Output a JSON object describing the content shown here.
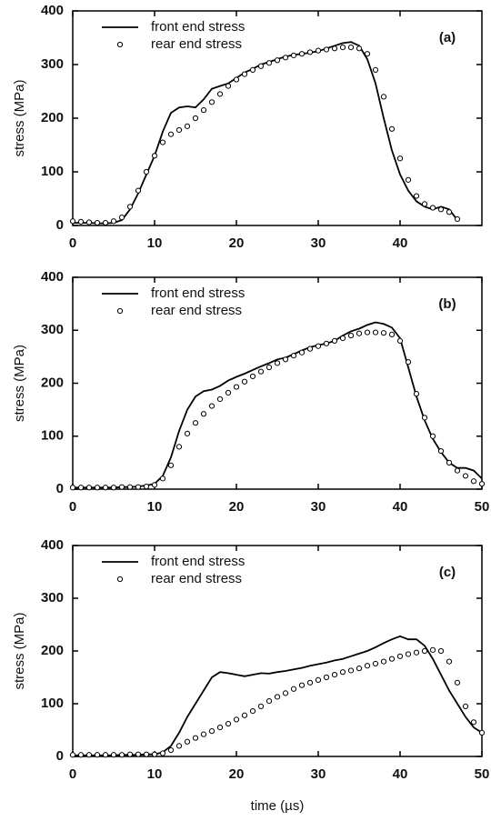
{
  "chart_data": [
    {
      "type": "line",
      "annotation": "(a)",
      "ylabel": "stress (MPa)",
      "x": [
        0,
        1,
        2,
        3,
        4,
        5,
        6,
        7,
        8,
        9,
        10,
        11,
        12,
        13,
        14,
        15,
        16,
        17,
        18,
        19,
        20,
        21,
        22,
        23,
        24,
        25,
        26,
        27,
        28,
        29,
        30,
        31,
        32,
        33,
        34,
        35,
        36,
        37,
        38,
        39,
        40,
        41,
        42,
        43,
        44,
        45,
        46,
        47
      ],
      "series": [
        {
          "name": "front end stress",
          "color": "#000000",
          "style": "line",
          "values": [
            5,
            5,
            5,
            4,
            4,
            5,
            10,
            30,
            60,
            95,
            130,
            175,
            210,
            220,
            222,
            220,
            235,
            255,
            260,
            265,
            275,
            285,
            292,
            300,
            305,
            310,
            315,
            318,
            320,
            322,
            325,
            330,
            335,
            340,
            342,
            335,
            310,
            265,
            200,
            140,
            95,
            65,
            45,
            35,
            30,
            35,
            30,
            10
          ]
        },
        {
          "name": "rear end stress",
          "color": "#000000",
          "style": "circle",
          "values": [
            8,
            7,
            6,
            5,
            5,
            8,
            15,
            35,
            65,
            100,
            130,
            155,
            170,
            178,
            185,
            200,
            215,
            230,
            245,
            260,
            272,
            282,
            290,
            297,
            303,
            308,
            313,
            317,
            320,
            323,
            326,
            328,
            330,
            332,
            332,
            330,
            320,
            290,
            240,
            180,
            125,
            85,
            55,
            40,
            33,
            30,
            25,
            12
          ]
        }
      ],
      "xlim": [
        0,
        50
      ],
      "xticks": [
        0,
        10,
        20,
        30,
        40
      ],
      "ylim": [
        0,
        400
      ],
      "yticks": [
        0,
        100,
        200,
        300,
        400
      ],
      "legend": "upper left"
    },
    {
      "type": "line",
      "annotation": "(b)",
      "ylabel": "stress (MPa)",
      "x": [
        0,
        1,
        2,
        3,
        4,
        5,
        6,
        7,
        8,
        9,
        10,
        11,
        12,
        13,
        14,
        15,
        16,
        17,
        18,
        19,
        20,
        21,
        22,
        23,
        24,
        25,
        26,
        27,
        28,
        29,
        30,
        31,
        32,
        33,
        34,
        35,
        36,
        37,
        38,
        39,
        40,
        41,
        42,
        43,
        44,
        45,
        46,
        47,
        48,
        49,
        50
      ],
      "series": [
        {
          "name": "front end stress",
          "color": "#000000",
          "style": "line",
          "values": [
            3,
            3,
            3,
            3,
            3,
            3,
            4,
            4,
            5,
            7,
            10,
            25,
            60,
            110,
            150,
            175,
            185,
            188,
            195,
            205,
            212,
            218,
            225,
            232,
            238,
            245,
            248,
            255,
            262,
            268,
            272,
            275,
            280,
            290,
            298,
            303,
            310,
            315,
            312,
            305,
            285,
            230,
            175,
            130,
            95,
            70,
            50,
            40,
            40,
            35,
            20
          ]
        },
        {
          "name": "rear end stress",
          "color": "#000000",
          "style": "circle",
          "values": [
            3,
            3,
            3,
            3,
            3,
            3,
            4,
            4,
            4,
            5,
            8,
            20,
            45,
            80,
            105,
            125,
            142,
            157,
            170,
            182,
            193,
            203,
            213,
            222,
            230,
            238,
            245,
            252,
            258,
            265,
            270,
            275,
            280,
            285,
            290,
            294,
            296,
            296,
            295,
            292,
            280,
            240,
            180,
            135,
            100,
            72,
            50,
            35,
            25,
            15,
            10
          ]
        }
      ],
      "xlim": [
        0,
        50
      ],
      "xticks": [
        0,
        10,
        20,
        30,
        40,
        50
      ],
      "ylim": [
        0,
        400
      ],
      "yticks": [
        0,
        100,
        200,
        300,
        400
      ],
      "legend": "upper left"
    },
    {
      "type": "line",
      "annotation": "(c)",
      "ylabel": "stress (MPa)",
      "xlabel": "time (µs)",
      "x": [
        0,
        1,
        2,
        3,
        4,
        5,
        6,
        7,
        8,
        9,
        10,
        11,
        12,
        13,
        14,
        15,
        16,
        17,
        18,
        19,
        20,
        21,
        22,
        23,
        24,
        25,
        26,
        27,
        28,
        29,
        30,
        31,
        32,
        33,
        34,
        35,
        36,
        37,
        38,
        39,
        40,
        41,
        42,
        43,
        44,
        45,
        46,
        47,
        48,
        49,
        50
      ],
      "series": [
        {
          "name": "front end stress",
          "color": "#000000",
          "style": "line",
          "values": [
            2,
            2,
            2,
            2,
            2,
            2,
            3,
            3,
            3,
            4,
            4,
            8,
            20,
            45,
            75,
            100,
            125,
            150,
            160,
            158,
            155,
            152,
            155,
            158,
            157,
            160,
            162,
            165,
            168,
            172,
            175,
            178,
            182,
            185,
            190,
            195,
            200,
            207,
            215,
            222,
            228,
            222,
            222,
            210,
            185,
            155,
            125,
            100,
            75,
            55,
            45
          ]
        },
        {
          "name": "rear end stress",
          "color": "#000000",
          "style": "circle",
          "values": [
            3,
            3,
            3,
            3,
            3,
            3,
            3,
            4,
            4,
            4,
            4,
            6,
            12,
            20,
            28,
            35,
            42,
            48,
            55,
            62,
            70,
            78,
            86,
            95,
            105,
            113,
            120,
            128,
            135,
            140,
            145,
            150,
            155,
            160,
            163,
            167,
            172,
            176,
            180,
            185,
            190,
            194,
            197,
            200,
            202,
            200,
            180,
            140,
            95,
            65,
            45
          ]
        }
      ],
      "xlim": [
        0,
        50
      ],
      "xticks": [
        0,
        10,
        20,
        30,
        40,
        50
      ],
      "ylim": [
        0,
        400
      ],
      "yticks": [
        0,
        100,
        200,
        300,
        400
      ],
      "legend": "upper left"
    }
  ]
}
